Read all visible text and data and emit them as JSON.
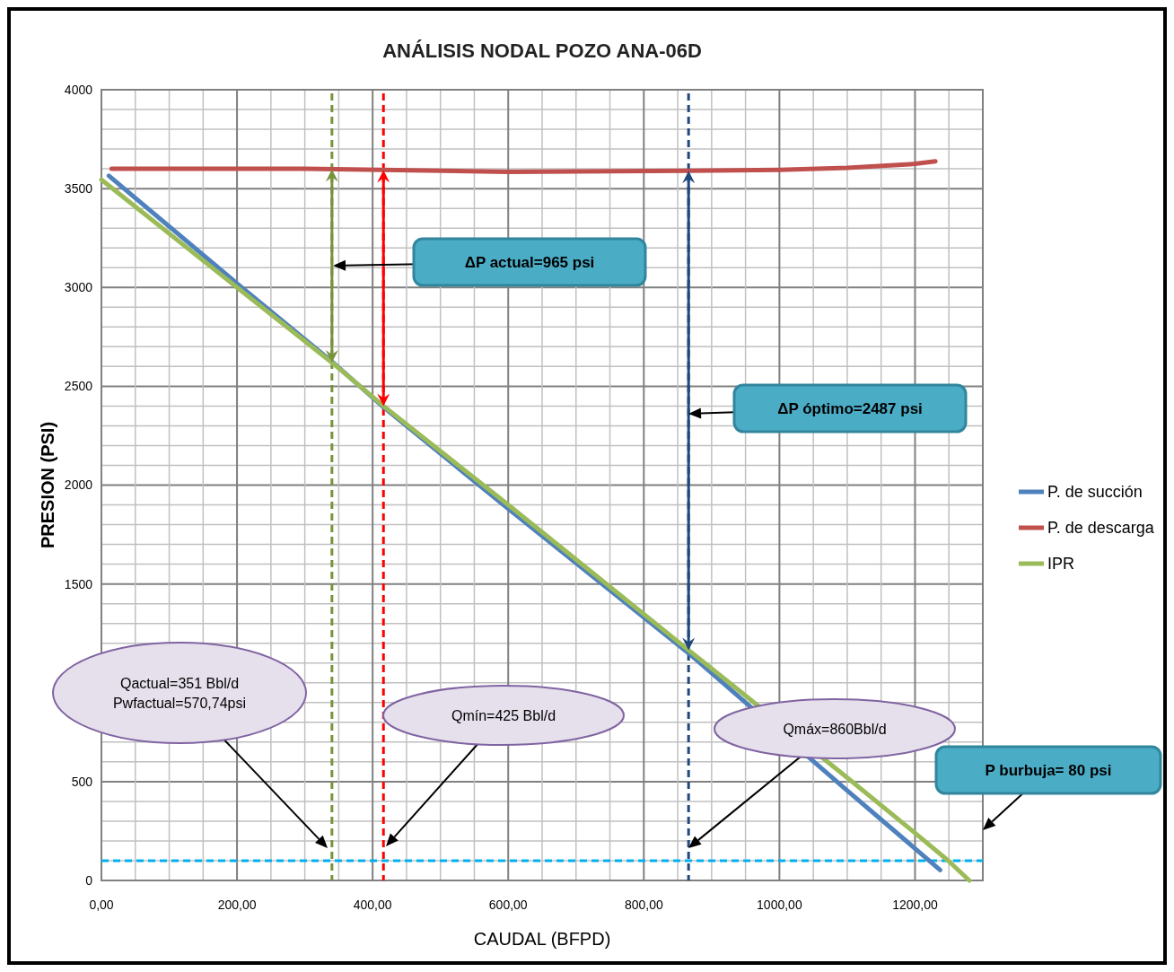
{
  "chart_data": {
    "type": "line",
    "title": "ANÁLISIS NODAL POZO ANA-06D",
    "xlabel": "CAUDAL (BFPD)",
    "ylabel": "PRESION (PSI)",
    "xlim": [
      0,
      1300
    ],
    "xticks": [
      {
        "value": 0,
        "label": "0,00"
      },
      {
        "value": 50,
        "label": null
      },
      {
        "value": 100,
        "label": null
      },
      {
        "value": 150,
        "label": null
      },
      {
        "value": 200,
        "label": "200,00"
      },
      {
        "value": 250,
        "label": null
      },
      {
        "value": 300,
        "label": null
      },
      {
        "value": 350,
        "label": null
      },
      {
        "value": 400,
        "label": "400,00"
      },
      {
        "value": 450,
        "label": null
      },
      {
        "value": 500,
        "label": null
      },
      {
        "value": 550,
        "label": null
      },
      {
        "value": 600,
        "label": "600,00"
      },
      {
        "value": 650,
        "label": null
      },
      {
        "value": 700,
        "label": null
      },
      {
        "value": 750,
        "label": null
      },
      {
        "value": 800,
        "label": "800,00"
      },
      {
        "value": 850,
        "label": null
      },
      {
        "value": 900,
        "label": null
      },
      {
        "value": 950,
        "label": null
      },
      {
        "value": 1000,
        "label": "1000,00"
      },
      {
        "value": 1050,
        "label": null
      },
      {
        "value": 1100,
        "label": null
      },
      {
        "value": 1150,
        "label": null
      },
      {
        "value": 1200,
        "label": "1200,00"
      },
      {
        "value": 1250,
        "label": null
      },
      {
        "value": 1300,
        "label": null
      }
    ],
    "ylim": [
      0,
      4000
    ],
    "yticks": [
      0,
      {
        "value": 100,
        "label": null
      },
      {
        "value": 200,
        "label": null
      },
      {
        "value": 300,
        "label": null
      },
      {
        "value": 400,
        "label": null
      },
      500,
      {
        "value": 600,
        "label": null
      },
      {
        "value": 700,
        "label": null
      },
      {
        "value": 800,
        "label": null
      },
      {
        "value": 900,
        "label": null
      },
      {
        "value": 1000,
        "label": null
      },
      {
        "value": 1100,
        "label": null
      },
      {
        "value": 1200,
        "label": null
      },
      {
        "value": 1300,
        "label": null
      },
      {
        "value": 1400,
        "label": null
      },
      1500,
      {
        "value": 1600,
        "label": null
      },
      {
        "value": 1700,
        "label": null
      },
      {
        "value": 1800,
        "label": null
      },
      {
        "value": 1900,
        "label": null
      },
      2000,
      {
        "value": 2100,
        "label": null
      },
      {
        "value": 2200,
        "label": null
      },
      {
        "value": 2300,
        "label": null
      },
      {
        "value": 2400,
        "label": null
      },
      2500,
      {
        "value": 2600,
        "label": null
      },
      {
        "value": 2700,
        "label": null
      },
      {
        "value": 2800,
        "label": null
      },
      {
        "value": 2900,
        "label": null
      },
      3000,
      {
        "value": 3100,
        "label": null
      },
      {
        "value": 3200,
        "label": null
      },
      {
        "value": 3300,
        "label": null
      },
      {
        "value": 3400,
        "label": null
      },
      3500,
      {
        "value": 3600,
        "label": null
      },
      {
        "value": 3700,
        "label": null
      },
      {
        "value": 3800,
        "label": null
      },
      {
        "value": 3900,
        "label": null
      },
      4000
    ],
    "grid": true,
    "legend": "right",
    "marker": "none",
    "line_style": "solid",
    "series": [
      {
        "name": "P. de succión",
        "color": "#4f81bd",
        "x": [
          11,
          200,
          340,
          416,
          600,
          866,
          930,
          1100,
          1237
        ],
        "values": [
          3565,
          3020,
          2625,
          2395,
          1880,
          1150,
          960,
          455,
          53
        ]
      },
      {
        "name": "P. de descarga",
        "color": "#c0504d",
        "x": [
          15,
          300,
          600,
          866,
          1000,
          1100,
          1200,
          1230
        ],
        "values": [
          3600,
          3600,
          3585,
          3590,
          3595,
          3605,
          3625,
          3638
        ]
      },
      {
        "name": "IPR",
        "color": "#9bbb59",
        "x": [
          0,
          200,
          340,
          416,
          600,
          866,
          930,
          1100,
          1200,
          1249,
          1280
        ],
        "values": [
          3545,
          3000,
          2620,
          2400,
          1900,
          1165,
          990,
          520,
          240,
          100,
          0
        ]
      }
    ],
    "ref_lines": [
      {
        "axis": "x",
        "value": 340,
        "color": "#77933c",
        "line_style": "dashed"
      },
      {
        "axis": "x",
        "value": 416,
        "color": "#ff0000",
        "line_style": "dashed"
      },
      {
        "axis": "x",
        "value": 866,
        "color": "#1f497d",
        "line_style": "dashed"
      },
      {
        "axis": "y",
        "value": 100,
        "color": "#00b0f0",
        "line_style": "dashed"
      }
    ],
    "annotations": [
      "ΔP actual=965 psi",
      "ΔP óptimo=2487 psi",
      "Qactual=351 Bbl/d\nPwfactual=570,74psi",
      "Qmín=425 Bbl/d",
      "Qmáx=860Bbl/d",
      "P burbuja= 80 psi"
    ]
  }
}
